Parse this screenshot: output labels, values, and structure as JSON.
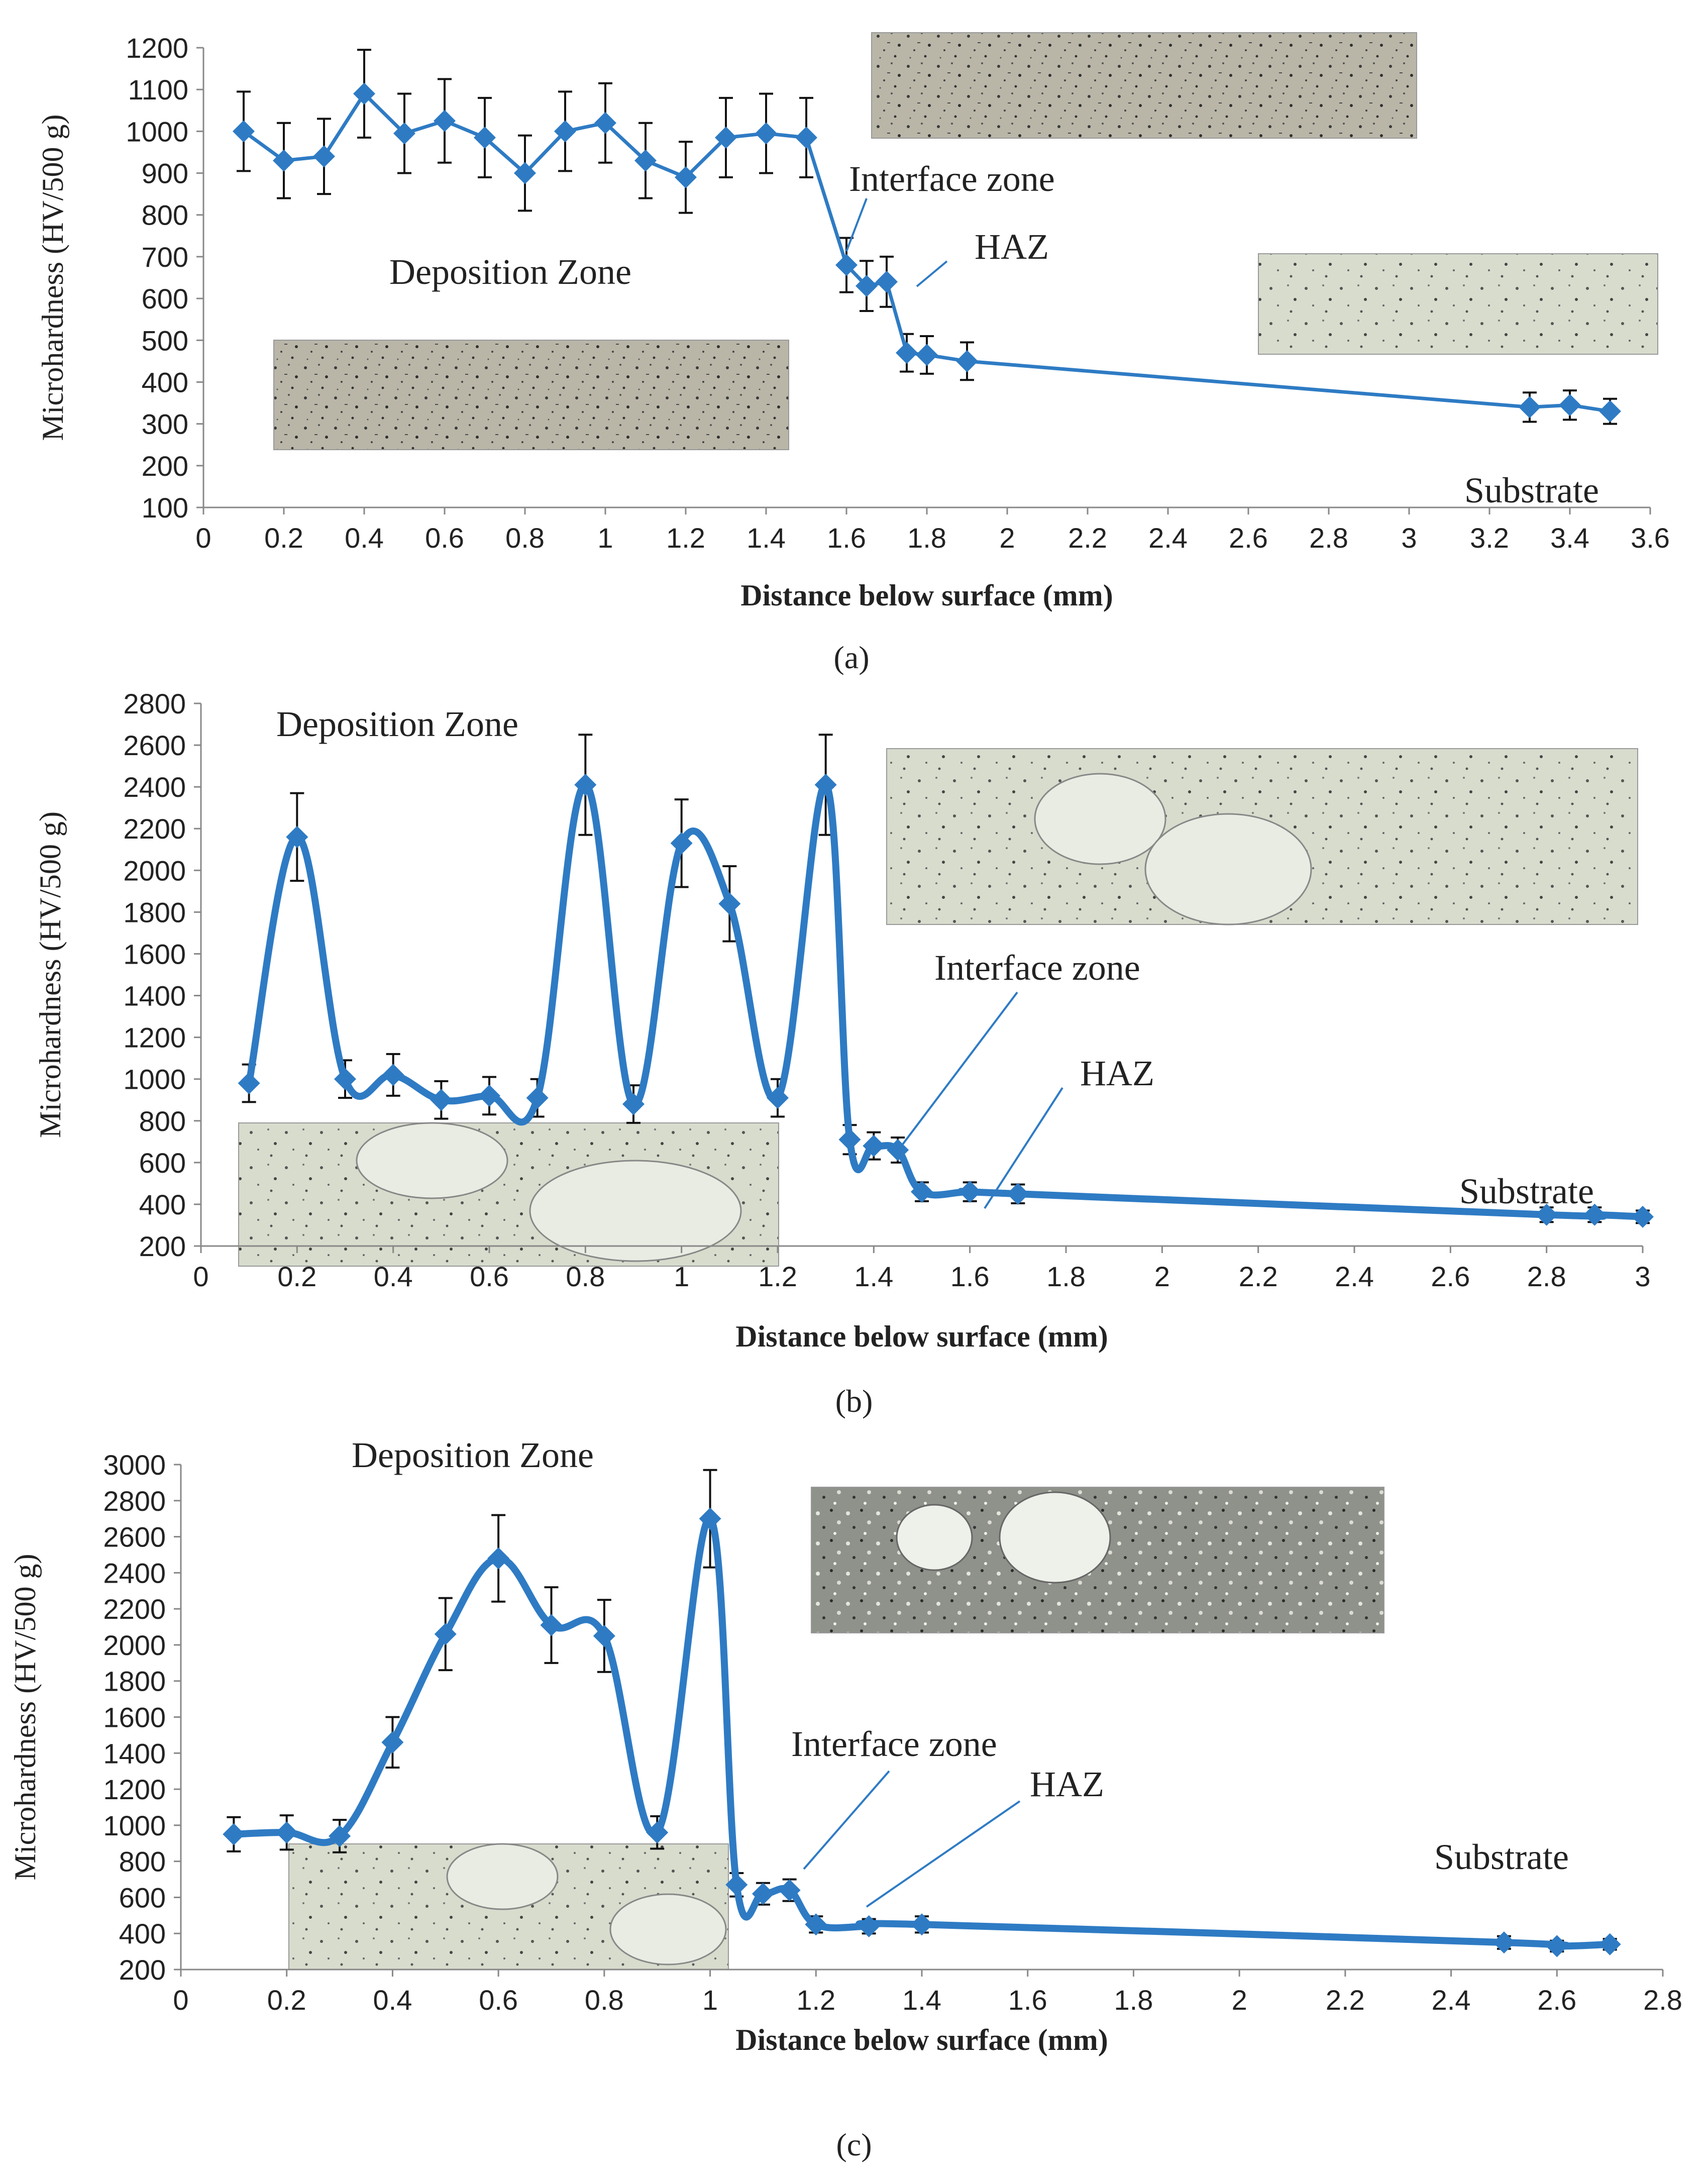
{
  "figure": {
    "panels": [
      {
        "caption": "(a)",
        "annotations": {
          "deposition": "Deposition Zone",
          "interface": "Interface zone",
          "haz": "HAZ",
          "substrate": "Substrate"
        }
      },
      {
        "caption": "(b)",
        "annotations": {
          "deposition": "Deposition Zone",
          "interface": "Interface zone",
          "haz": "HAZ",
          "substrate": "Substrate"
        }
      },
      {
        "caption": "(c)",
        "annotations": {
          "deposition": "Deposition Zone",
          "interface": "Interface zone",
          "haz": "HAZ",
          "substrate": "Substrate"
        }
      }
    ]
  },
  "colors": {
    "series": "#2E7BC4",
    "axis": "#888888",
    "text": "#222222",
    "micrograph": "#b9b6a8"
  },
  "chart_data": [
    {
      "type": "line",
      "xlabel": "Distance below surface (mm)",
      "ylabel": "Microhardness (HV/500 g)",
      "xlim": [
        0,
        3.6
      ],
      "ylim": [
        100,
        1200
      ],
      "xticks": [
        "0",
        "0.2",
        "0.4",
        "0.6",
        "0.8",
        "1",
        "1.2",
        "1.4",
        "1.6",
        "1.8",
        "2",
        "2.2",
        "2.4",
        "2.6",
        "2.8",
        "3",
        "3.2",
        "3.4",
        "3.6"
      ],
      "yticks": [
        "100",
        "200",
        "300",
        "400",
        "500",
        "600",
        "700",
        "800",
        "900",
        "1000",
        "1100",
        "1200"
      ],
      "grid": false,
      "smooth": false,
      "x": [
        0.1,
        0.2,
        0.3,
        0.4,
        0.5,
        0.6,
        0.7,
        0.8,
        0.9,
        1.0,
        1.1,
        1.2,
        1.3,
        1.4,
        1.5,
        1.6,
        1.65,
        1.7,
        1.75,
        1.8,
        1.9,
        3.3,
        3.4,
        3.5
      ],
      "y": [
        1000,
        930,
        940,
        1090,
        995,
        1025,
        985,
        900,
        1000,
        1020,
        930,
        890,
        985,
        995,
        985,
        680,
        630,
        640,
        470,
        465,
        450,
        340,
        345,
        330
      ],
      "err": [
        95,
        90,
        90,
        105,
        95,
        100,
        95,
        90,
        95,
        95,
        90,
        85,
        95,
        95,
        95,
        65,
        60,
        60,
        45,
        45,
        45,
        35,
        35,
        30
      ]
    },
    {
      "type": "line",
      "xlabel": "Distance below surface (mm)",
      "ylabel": "Microhardness (HV/500 g)",
      "xlim": [
        0,
        3
      ],
      "ylim": [
        200,
        2800
      ],
      "xticks": [
        "0",
        "0.2",
        "0.4",
        "0.6",
        "0.8",
        "1",
        "1.2",
        "1.4",
        "1.6",
        "1.8",
        "2",
        "2.2",
        "2.4",
        "2.6",
        "2.8",
        "3"
      ],
      "yticks": [
        "200",
        "400",
        "600",
        "800",
        "1000",
        "1200",
        "1400",
        "1600",
        "1800",
        "2000",
        "2200",
        "2400",
        "2600",
        "2800"
      ],
      "grid": false,
      "smooth": true,
      "x": [
        0.1,
        0.2,
        0.3,
        0.4,
        0.5,
        0.6,
        0.7,
        0.8,
        0.9,
        1.0,
        1.1,
        1.2,
        1.3,
        1.35,
        1.4,
        1.45,
        1.5,
        1.6,
        1.7,
        2.8,
        2.9,
        3.0
      ],
      "y": [
        980,
        2160,
        1000,
        1020,
        900,
        920,
        910,
        2410,
        880,
        2130,
        1840,
        910,
        2410,
        710,
        680,
        660,
        460,
        460,
        450,
        350,
        350,
        340
      ],
      "err": [
        90,
        210,
        90,
        100,
        90,
        90,
        90,
        240,
        90,
        210,
        180,
        90,
        240,
        70,
        65,
        60,
        45,
        45,
        45,
        35,
        35,
        30
      ]
    },
    {
      "type": "line",
      "xlabel": "Distance below surface (mm)",
      "ylabel": "Microhardness (HV/500 g)",
      "xlim": [
        0,
        2.8
      ],
      "ylim": [
        200,
        3000
      ],
      "xticks": [
        "0",
        "0.2",
        "0.4",
        "0.6",
        "0.8",
        "1",
        "1.2",
        "1.4",
        "1.6",
        "1.8",
        "2",
        "2.2",
        "2.4",
        "2.6",
        "2.8"
      ],
      "yticks": [
        "200",
        "400",
        "600",
        "800",
        "1000",
        "1200",
        "1400",
        "1600",
        "1800",
        "2000",
        "2200",
        "2400",
        "2600",
        "2800",
        "3000"
      ],
      "grid": false,
      "smooth": true,
      "x": [
        0.1,
        0.2,
        0.3,
        0.4,
        0.5,
        0.6,
        0.7,
        0.8,
        0.9,
        1.0,
        1.05,
        1.1,
        1.15,
        1.2,
        1.3,
        1.4,
        2.5,
        2.6,
        2.7
      ],
      "y": [
        950,
        960,
        940,
        1460,
        2060,
        2480,
        2110,
        2050,
        960,
        2700,
        670,
        620,
        640,
        450,
        440,
        450,
        350,
        330,
        340
      ],
      "err": [
        95,
        95,
        90,
        140,
        200,
        240,
        210,
        200,
        90,
        270,
        65,
        60,
        60,
        45,
        40,
        45,
        35,
        30,
        30
      ]
    }
  ]
}
